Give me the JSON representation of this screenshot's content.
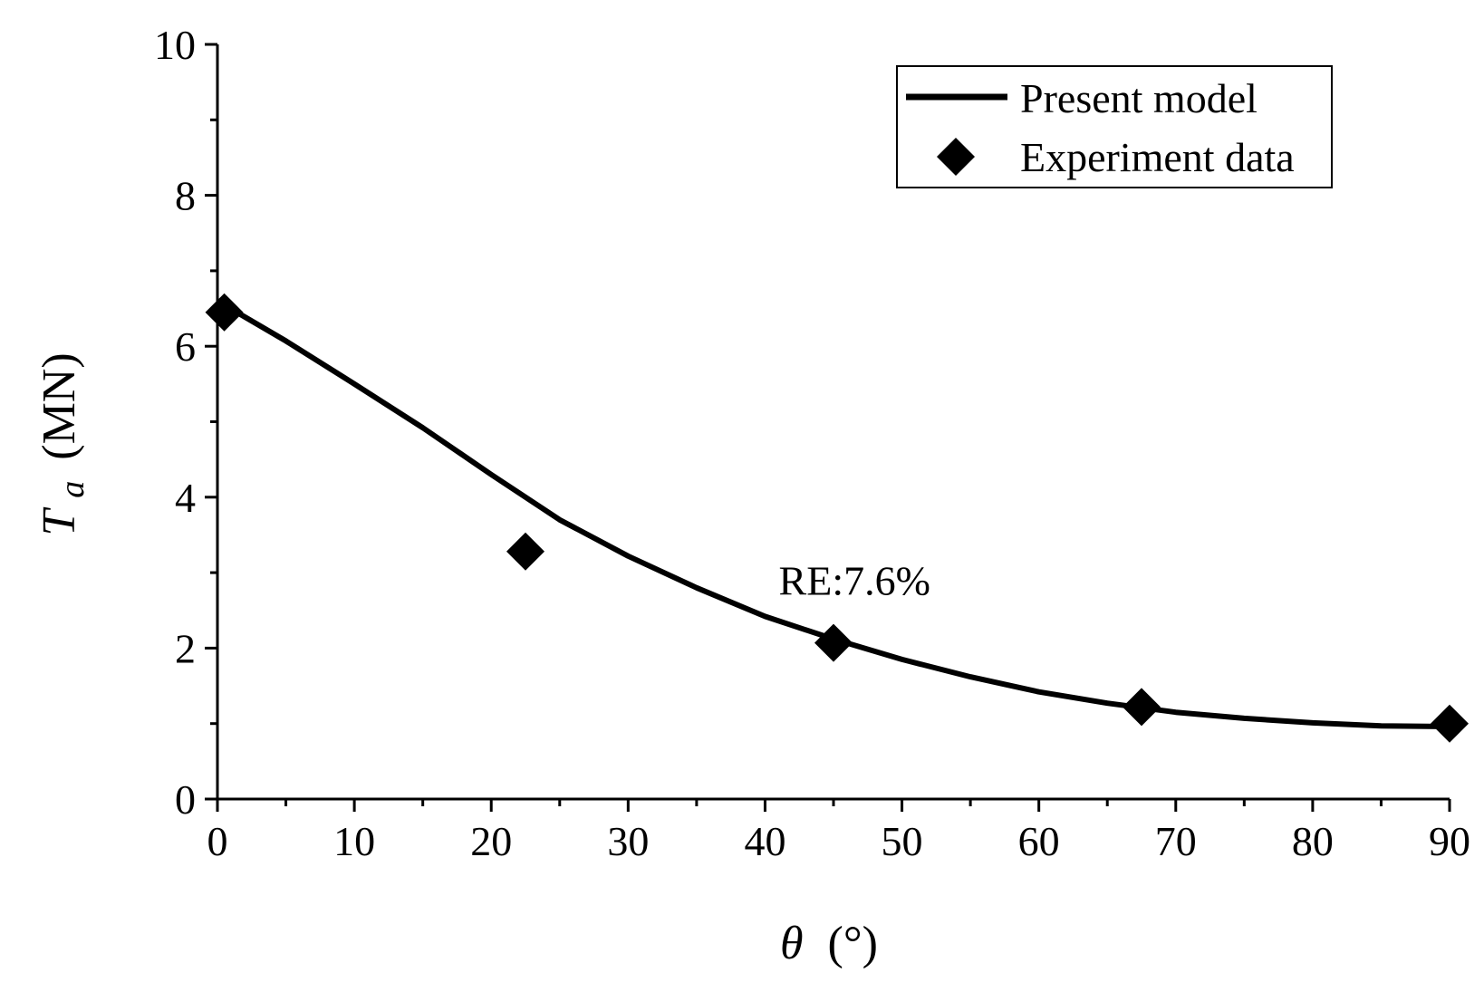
{
  "chart_data": {
    "type": "line",
    "title": "",
    "xlabel": {
      "symbol": "θ",
      "unit": "(°)"
    },
    "ylabel": {
      "symbol": "T",
      "subscript": "a",
      "unit": "(MN)"
    },
    "xlim": [
      0,
      90
    ],
    "ylim": [
      0,
      10
    ],
    "xticks": [
      0,
      10,
      20,
      30,
      40,
      50,
      60,
      70,
      80,
      90
    ],
    "xtick_labels": [
      "0",
      "10",
      "20",
      "30",
      "40",
      "50",
      "60",
      "70",
      "80",
      "90"
    ],
    "yticks": [
      0,
      2,
      4,
      6,
      8,
      10
    ],
    "ytick_labels": [
      "0",
      "2",
      "4",
      "6",
      "8",
      "10"
    ],
    "grid": false,
    "legend_position": "top-right",
    "series": [
      {
        "name": "Present model",
        "kind": "line",
        "x": [
          0,
          5,
          10,
          15,
          20,
          25,
          30,
          35,
          40,
          45,
          50,
          55,
          60,
          65,
          70,
          75,
          80,
          85,
          90
        ],
        "values": [
          6.6,
          6.07,
          5.5,
          4.92,
          4.3,
          3.7,
          3.22,
          2.8,
          2.42,
          2.12,
          1.85,
          1.62,
          1.42,
          1.27,
          1.15,
          1.07,
          1.01,
          0.97,
          0.96
        ]
      },
      {
        "name": "Experiment data",
        "kind": "scatter",
        "x": [
          0.5,
          22.5,
          45,
          67.5,
          90
        ],
        "values": [
          6.45,
          3.28,
          2.07,
          1.22,
          1.0
        ]
      }
    ],
    "annotations": [
      {
        "text": "RE:7.6%",
        "x": 41,
        "y": 2.9
      }
    ],
    "colors": {
      "line": "#000000",
      "marker": "#000000",
      "axis": "#000000"
    }
  }
}
